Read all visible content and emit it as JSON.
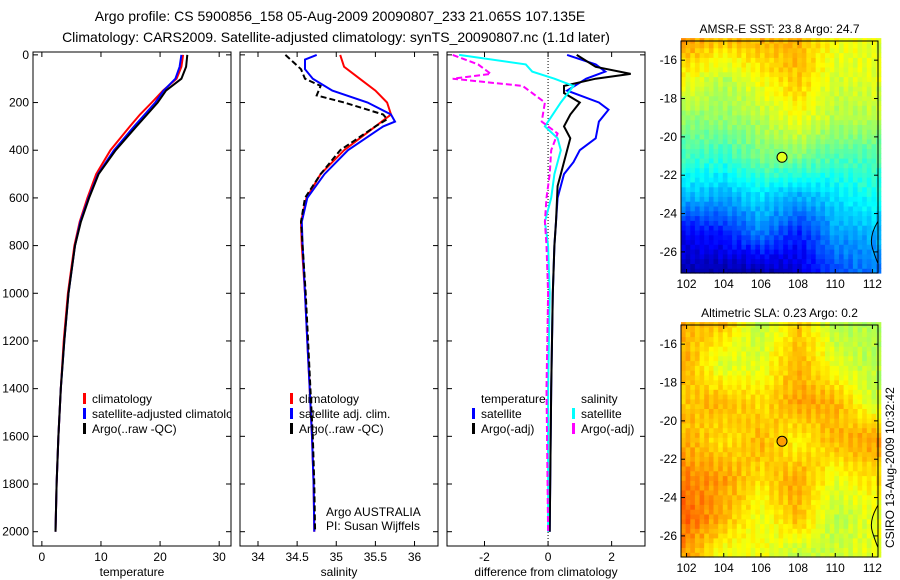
{
  "title_line1": "Argo profile: CS 5900856_158 05-Aug-2009 20090807_233 21.065S 107.135E",
  "title_line2": "Climatology: CARS2009. Satellite-adjusted climatology: synTS_20090807.nc (1.1d later)",
  "credit": "CSIRO 13-Aug-2009 10:32:42",
  "chart_data": [
    {
      "type": "line",
      "xlabel": "temperature",
      "xlim": [
        -1.5,
        32
      ],
      "ylim": [
        -12,
        2060
      ],
      "yreversed": true,
      "xticks": [
        0,
        10,
        20,
        30
      ],
      "yticks": [
        0,
        200,
        400,
        600,
        800,
        1000,
        1200,
        1400,
        1600,
        1800,
        2000
      ],
      "legend": {
        "placement": "lower-center",
        "entries": [
          {
            "label": "climatology",
            "color": "#ff0000"
          },
          {
            "label": "satellite-adjusted climatology",
            "color": "#0000ff"
          },
          {
            "label": "Argo(..raw -QC)",
            "color": "#000000"
          }
        ]
      },
      "series": [
        {
          "name": "climatology",
          "color": "#ff0000",
          "depth": [
            0,
            50,
            100,
            150,
            200,
            250,
            300,
            400,
            500,
            600,
            700,
            800,
            1000,
            1200,
            1400,
            1600,
            1800,
            2000
          ],
          "values": [
            23.9,
            23.6,
            22.8,
            20.5,
            18.6,
            16.6,
            14.9,
            11.6,
            9.2,
            7.7,
            6.4,
            5.5,
            4.4,
            3.7,
            3.2,
            2.8,
            2.5,
            2.3
          ]
        },
        {
          "name": "satellite-adjusted climatology",
          "color": "#0000ff",
          "depth": [
            0,
            50,
            100,
            150,
            200,
            250,
            300,
            400,
            500,
            600,
            700,
            800,
            1000,
            1200,
            1400,
            1600,
            1800,
            2000
          ],
          "values": [
            23.6,
            23.3,
            22.6,
            20.6,
            19.2,
            17.4,
            15.6,
            12.2,
            9.5,
            7.9,
            6.5,
            5.6,
            4.5,
            3.8,
            3.2,
            2.8,
            2.5,
            2.3
          ]
        },
        {
          "name": "Argo(..raw -QC)",
          "color": "#000000",
          "depth": [
            0,
            50,
            100,
            150,
            200,
            250,
            300,
            400,
            500,
            600,
            700,
            800,
            1000,
            1200,
            1400,
            1600,
            1800,
            2000
          ],
          "values": [
            24.6,
            24.4,
            23.6,
            21.0,
            19.6,
            17.8,
            16.0,
            12.5,
            9.6,
            8.0,
            6.6,
            5.6,
            4.5,
            3.8,
            3.2,
            2.8,
            2.5,
            2.3
          ]
        }
      ]
    },
    {
      "type": "line",
      "xlabel": "salinity",
      "xlim": [
        33.77,
        36.3
      ],
      "ylim": [
        -12,
        2060
      ],
      "yreversed": true,
      "xticks": [
        34,
        34.5,
        35,
        35.5,
        36
      ],
      "legend": {
        "placement": "lower-center",
        "entries": [
          {
            "label": "climatology",
            "color": "#ff0000"
          },
          {
            "label": "satellite adj. clim.",
            "color": "#0000ff"
          },
          {
            "label": "Argo(..raw -QC)",
            "color": "#000000"
          }
        ]
      },
      "annotations": [
        "Argo AUSTRALIA",
        "PI: Susan Wijffels"
      ],
      "series": [
        {
          "name": "climatology",
          "color": "#ff0000",
          "depth": [
            0,
            50,
            100,
            150,
            200,
            250,
            300,
            400,
            500,
            600,
            700,
            800,
            1000,
            1200,
            1400,
            1600,
            1800,
            2000
          ],
          "values": [
            35.05,
            35.1,
            35.3,
            35.5,
            35.65,
            35.7,
            35.5,
            35.1,
            34.8,
            34.62,
            34.55,
            34.56,
            34.6,
            34.63,
            34.66,
            34.69,
            34.71,
            34.72
          ]
        },
        {
          "name": "satellite adj. clim.",
          "color": "#0000ff",
          "depth": [
            0,
            20,
            60,
            100,
            150,
            200,
            250,
            280,
            300,
            400,
            500,
            600,
            700,
            800,
            1000,
            1200,
            1400,
            1600,
            1800,
            2000
          ],
          "values": [
            34.75,
            34.6,
            34.6,
            34.7,
            34.95,
            35.4,
            35.7,
            35.75,
            35.6,
            35.15,
            34.85,
            34.63,
            34.56,
            34.57,
            34.6,
            34.63,
            34.66,
            34.69,
            34.71,
            34.72
          ]
        },
        {
          "name": "Argo(..raw -QC)",
          "color": "#000000",
          "depth": [
            0,
            30,
            60,
            100,
            130,
            170,
            200,
            250,
            270,
            300,
            400,
            500,
            600,
            700,
            800,
            1000,
            1200,
            1400,
            1600,
            1800,
            2000
          ],
          "values": [
            34.35,
            34.45,
            34.55,
            34.6,
            34.8,
            34.75,
            35.1,
            35.6,
            35.65,
            35.5,
            35.05,
            34.8,
            34.6,
            34.55,
            34.57,
            34.61,
            34.64,
            34.67,
            34.7,
            34.72,
            34.73
          ]
        }
      ]
    },
    {
      "type": "line",
      "xlabel": "difference from climatology",
      "xlim": [
        -3.18,
        3.05
      ],
      "ylim": [
        -12,
        2060
      ],
      "yreversed": true,
      "xticks": [
        -2,
        0,
        2
      ],
      "legend": {
        "placement": "lower-center",
        "entries": [
          {
            "label": "temperature",
            "color": null
          },
          {
            "label": "satellite",
            "color": "#0000ff"
          },
          {
            "label": "Argo(-adj)",
            "color": "#000000"
          },
          {
            "label": "salinity",
            "color": null
          },
          {
            "label": "satellite",
            "color": "#00ffff"
          },
          {
            "label": "Argo(-adj)",
            "color": "#ff00ff"
          }
        ]
      },
      "series": [
        {
          "name": "temperature satellite",
          "color": "#0000ff",
          "depth": [
            0,
            40,
            70,
            100,
            150,
            200,
            230,
            280,
            350,
            400,
            450,
            500,
            600,
            800,
            1000,
            1400,
            2000
          ],
          "values": [
            0.6,
            1.5,
            1.8,
            1.2,
            0.6,
            1.6,
            1.9,
            1.6,
            1.5,
            1.0,
            0.8,
            0.5,
            0.3,
            0.2,
            0.15,
            0.1,
            0.05
          ]
        },
        {
          "name": "temperature Argo(-adj)",
          "color": "#000000",
          "depth": [
            0,
            50,
            80,
            100,
            130,
            160,
            200,
            250,
            300,
            350,
            400,
            500,
            550,
            700,
            800,
            1000,
            1400,
            2000
          ],
          "values": [
            0.9,
            1.5,
            2.6,
            1.5,
            0.5,
            0.5,
            1.0,
            0.7,
            0.5,
            0.7,
            0.6,
            0.4,
            0.3,
            0.25,
            0.2,
            0.15,
            0.1,
            0.05
          ]
        },
        {
          "name": "salinity satellite",
          "color": "#00ffff",
          "depth": [
            0,
            40,
            70,
            100,
            130,
            200,
            300,
            350,
            400,
            500,
            600,
            700,
            800,
            1000,
            1400,
            2000
          ],
          "values": [
            -2.8,
            -0.7,
            -0.5,
            0.2,
            0.8,
            0.4,
            -0.1,
            0.3,
            0.4,
            0.2,
            0.1,
            -0.1,
            0.0,
            0.05,
            0.0,
            0.0
          ]
        },
        {
          "name": "salinity Argo(-adj)",
          "color": "#ff00ff",
          "depth": [
            0,
            40,
            80,
            100,
            130,
            200,
            280,
            330,
            400,
            500,
            600,
            700,
            800,
            1000,
            1400,
            2000
          ],
          "values": [
            -3.0,
            -2.2,
            -1.8,
            -3.0,
            -0.8,
            -0.1,
            -0.2,
            0.3,
            0.1,
            0.05,
            -0.05,
            -0.1,
            -0.05,
            0.0,
            -0.05,
            0.0
          ]
        }
      ]
    },
    {
      "type": "heatmap",
      "title": "AMSR-E SST: 23.8 Argo: 24.7",
      "xlim": [
        101.7,
        112.3
      ],
      "ylim": [
        -27.1,
        -15.0
      ],
      "xticks": [
        102,
        104,
        106,
        108,
        110,
        112
      ],
      "yticks": [
        -16,
        -18,
        -20,
        -22,
        -24,
        -26
      ],
      "grid_lons": [
        102,
        104,
        106,
        108,
        110,
        112
      ],
      "grid_lats": [
        -15,
        -17,
        -19,
        -21,
        -23,
        -25,
        -27
      ],
      "values_normalized": [
        [
          0.72,
          0.68,
          0.7,
          0.7,
          0.62,
          0.6
        ],
        [
          0.62,
          0.55,
          0.62,
          0.68,
          0.58,
          0.6
        ],
        [
          0.52,
          0.52,
          0.55,
          0.62,
          0.55,
          0.55
        ],
        [
          0.44,
          0.42,
          0.5,
          0.5,
          0.45,
          0.45
        ],
        [
          0.32,
          0.3,
          0.35,
          0.3,
          0.35,
          0.4
        ],
        [
          0.12,
          0.15,
          0.25,
          0.15,
          0.28,
          0.3
        ],
        [
          0.05,
          0.05,
          0.05,
          0.08,
          0.2,
          0.25
        ]
      ],
      "marker": {
        "lon": 107.135,
        "lat": -21.065,
        "value_normalized": 0.6
      }
    },
    {
      "type": "heatmap",
      "title": "Altimetric SLA: 0.23 Argo: 0.2",
      "xlim": [
        101.7,
        112.3
      ],
      "ylim": [
        -27.1,
        -15.0
      ],
      "xticks": [
        102,
        104,
        106,
        108,
        110,
        112
      ],
      "yticks": [
        -16,
        -18,
        -20,
        -22,
        -24,
        -26
      ],
      "grid_lons": [
        102,
        104,
        106,
        108,
        110,
        112
      ],
      "grid_lats": [
        -15,
        -17,
        -19,
        -21,
        -23,
        -25,
        -27
      ],
      "values_normalized": [
        [
          0.7,
          0.68,
          0.55,
          0.68,
          0.55,
          0.55
        ],
        [
          0.7,
          0.58,
          0.6,
          0.7,
          0.6,
          0.55
        ],
        [
          0.68,
          0.7,
          0.65,
          0.72,
          0.7,
          0.58
        ],
        [
          0.7,
          0.65,
          0.7,
          0.62,
          0.7,
          0.72
        ],
        [
          0.75,
          0.72,
          0.65,
          0.72,
          0.6,
          0.65
        ],
        [
          0.78,
          0.7,
          0.6,
          0.7,
          0.55,
          0.6
        ],
        [
          0.72,
          0.6,
          0.62,
          0.55,
          0.58,
          0.6
        ]
      ],
      "marker": {
        "lon": 107.135,
        "lat": -21.065,
        "value_normalized": 0.72
      }
    }
  ]
}
